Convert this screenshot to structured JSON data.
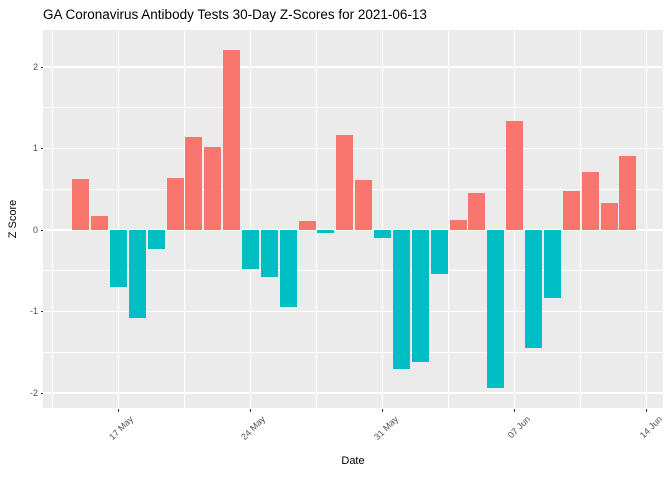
{
  "chart_data": {
    "type": "bar",
    "title": "GA Coronavirus Antibody Tests 30-Day Z-Scores for 2021-06-13",
    "xlabel": "Date",
    "ylabel": "Z Score",
    "x": [
      "2021-05-15",
      "2021-05-16",
      "2021-05-17",
      "2021-05-18",
      "2021-05-19",
      "2021-05-20",
      "2021-05-21",
      "2021-05-22",
      "2021-05-23",
      "2021-05-24",
      "2021-05-25",
      "2021-05-26",
      "2021-05-27",
      "2021-05-28",
      "2021-05-29",
      "2021-05-30",
      "2021-05-31",
      "2021-06-01",
      "2021-06-02",
      "2021-06-03",
      "2021-06-04",
      "2021-06-05",
      "2021-06-06",
      "2021-06-07",
      "2021-06-08",
      "2021-06-09",
      "2021-06-10",
      "2021-06-11",
      "2021-06-12",
      "2021-06-13"
    ],
    "values": [
      0.63,
      0.17,
      -0.7,
      -1.08,
      -0.23,
      0.64,
      1.14,
      1.02,
      2.21,
      -0.48,
      -0.58,
      -0.95,
      0.11,
      -0.04,
      1.17,
      0.62,
      -0.1,
      -1.71,
      -1.62,
      -0.54,
      0.12,
      0.46,
      -1.94,
      1.34,
      -1.45,
      -0.83,
      0.48,
      0.71,
      0.33,
      0.91
    ],
    "x_ticks": [
      {
        "label": "17 May",
        "day_index": 2
      },
      {
        "label": "24 May",
        "day_index": 9
      },
      {
        "label": "31 May",
        "day_index": 16
      },
      {
        "label": "07 Jun",
        "day_index": 23
      },
      {
        "label": "14 Jun",
        "day_index": 30
      }
    ],
    "x_minor_day_indices": [
      -1.5,
      5.5,
      12.5,
      19.5,
      26.5
    ],
    "y_ticks": [
      {
        "label": "2",
        "value": 2
      },
      {
        "label": "1",
        "value": 1
      },
      {
        "label": "0",
        "value": 0
      },
      {
        "label": "-1",
        "value": -1
      },
      {
        "label": "-2",
        "value": -2
      }
    ],
    "y_minor_values": [
      1.5,
      0.5,
      -0.5,
      -1.5
    ],
    "ylim": [
      -2.19,
      2.45
    ],
    "grid": true,
    "legend": "none",
    "colors": {
      "positive": "#F8766D",
      "negative": "#00BFC4",
      "panel_background": "#EBEBEB",
      "gridline": "#FFFFFF",
      "tick_text": "#4D4D4D",
      "title_text": "#000000"
    }
  }
}
